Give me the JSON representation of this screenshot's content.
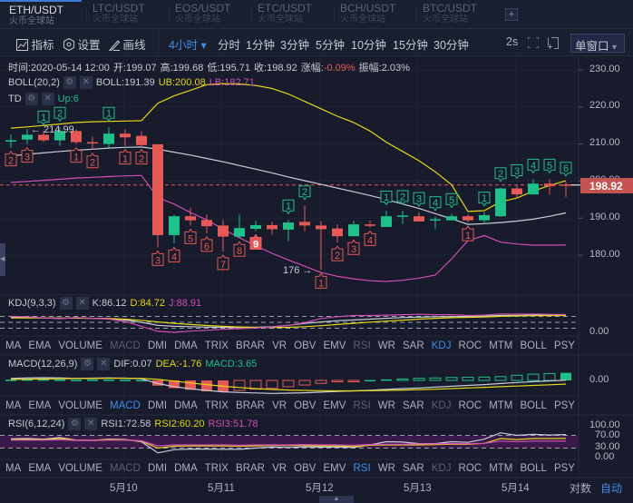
{
  "pair_tabs": [
    {
      "symbol": "ETH/USDT",
      "exchange": "火币全球站",
      "active": true
    },
    {
      "symbol": "LTC/USDT",
      "exchange": "火币全球站"
    },
    {
      "symbol": "EOS/USDT",
      "exchange": "火币全球站"
    },
    {
      "symbol": "ETC/USDT",
      "exchange": "火币全球站"
    },
    {
      "symbol": "BCH/USDT",
      "exchange": "火币全球站"
    },
    {
      "symbol": "BTC/USDT",
      "exchange": "火币全球站"
    }
  ],
  "add_tab": "+",
  "toolbar": {
    "indicator": "指标",
    "settings": "设置",
    "draw": "画线",
    "interval": "4小时",
    "interval_arrow": "▾",
    "periods": [
      "分时",
      "1分钟",
      "3分钟",
      "5分钟",
      "10分钟",
      "15分钟",
      "30分钟"
    ],
    "refresh": "2s",
    "window": "单窗口",
    "window_arrow": "▾"
  },
  "info": {
    "time": "时间:2020-05-14 12:00",
    "open": "开:199.07",
    "high": "高:199.68",
    "low": "低:195.71",
    "close": "收:198.92",
    "change_label": "涨幅:",
    "change": "-0.09%",
    "amplitude": "振幅:2.03%"
  },
  "boll": {
    "name": "BOLL(20,2)",
    "mid": "BOLL:191.39",
    "ub": "UB:200.08",
    "lb": "LB:182.71"
  },
  "td": {
    "name": "TD",
    "up": "Up:6"
  },
  "price_axis": [
    "230.00",
    "220.00",
    "210.00",
    "200.00",
    "190.00",
    "180.00"
  ],
  "last_price": "198.92",
  "annotations": {
    "high": "← 214.99",
    "low": "176 →"
  },
  "kdj": {
    "name": "KDJ(9,3,3)",
    "k": "K:86.12",
    "d": "D:84.72",
    "j": "J:88.91",
    "axis": "0.00"
  },
  "macd": {
    "name": "MACD(12,26,9)",
    "dif": "DIF:0.07",
    "dea": "DEA:-1.76",
    "macd": "MACD:3.65",
    "axis": "0.00"
  },
  "rsi": {
    "name": "RSI(6,12,24)",
    "rsi1": "RSI1:72.58",
    "rsi2": "RSI2:60.20",
    "rsi3": "RSI3:51.78",
    "axis": [
      "100.00",
      "70.00",
      "30.00",
      "0.00"
    ]
  },
  "indicator_tabs": [
    "MA",
    "EMA",
    "VOLUME",
    "MACD",
    "DMI",
    "DMA",
    "TRIX",
    "BRAR",
    "VR",
    "OBV",
    "EMV",
    "RSI",
    "WR",
    "SAR",
    "KDJ",
    "ROC",
    "MTM",
    "BOLL",
    "PSY"
  ],
  "panel_tab_state": [
    {
      "active": "KDJ",
      "disabled": [
        "MACD",
        "RSI"
      ]
    },
    {
      "active": "MACD",
      "disabled": [
        "RSI",
        "KDJ"
      ]
    },
    {
      "active": "RSI",
      "disabled": [
        "MACD",
        "KDJ"
      ]
    }
  ],
  "dates": [
    "5月10",
    "5月11",
    "5月12",
    "5月13",
    "5月14"
  ],
  "scale_modes": {
    "log": "对数",
    "auto": "自动"
  },
  "colors": {
    "up": "#1fc08a",
    "down": "#e55a56",
    "ub": "#e6d619",
    "mid": "#c8ccd8",
    "lb": "#d24db5",
    "accent": "#3e8ee8"
  },
  "chart_data": {
    "type": "candlestick",
    "ylim": [
      170,
      232
    ],
    "candles": [
      [
        211,
        211,
        212.5,
        209
      ],
      [
        211.2,
        212.5,
        214,
        210
      ],
      [
        212.5,
        211,
        213.5,
        210.5
      ],
      [
        211,
        213.5,
        214.5,
        209.5
      ],
      [
        213.5,
        210.5,
        214,
        210
      ],
      [
        210.5,
        210.2,
        212,
        208.5
      ],
      [
        210,
        212.8,
        214.5,
        209
      ],
      [
        212.8,
        211.8,
        214,
        209.5
      ],
      [
        212.2,
        209.7,
        213.5,
        209.5
      ],
      [
        209.9,
        185.4,
        210,
        182.1
      ],
      [
        185.4,
        190.5,
        190.9,
        183.1
      ],
      [
        190.5,
        189.4,
        192.8,
        188
      ],
      [
        189.5,
        187.8,
        190.9,
        185.9
      ],
      [
        188,
        185,
        189.5,
        181
      ],
      [
        185,
        187.3,
        190.9,
        184.6
      ],
      [
        187.1,
        188.1,
        189.3,
        186.5
      ],
      [
        188.1,
        187,
        189,
        185.5
      ],
      [
        186.9,
        188.8,
        189.5,
        183.8
      ],
      [
        189,
        188,
        193.3,
        186.4
      ],
      [
        188,
        187,
        189.2,
        176
      ],
      [
        187.2,
        185.1,
        188.3,
        183.4
      ],
      [
        185.1,
        188.3,
        189.3,
        185.1
      ],
      [
        188.3,
        187.9,
        189.3,
        187.5
      ],
      [
        187.6,
        190.5,
        191.9,
        187.6
      ],
      [
        190.5,
        190.7,
        192,
        188.4
      ],
      [
        190.5,
        189.1,
        191.5,
        189.1
      ],
      [
        189.5,
        189.7,
        190.4,
        187
      ],
      [
        189.4,
        190.5,
        191.2,
        189.4
      ],
      [
        190.5,
        189.4,
        191,
        188.8
      ],
      [
        189.4,
        190.8,
        191.6,
        188.3
      ],
      [
        190.5,
        198,
        198.2,
        190.3
      ],
      [
        198,
        196.4,
        199,
        195.3
      ],
      [
        196.4,
        199.3,
        200.5,
        196.4
      ],
      [
        199.3,
        198.6,
        200.5,
        196.4
      ],
      [
        199.07,
        198.92,
        199.68,
        195.71
      ]
    ],
    "boll_ub": [
      214.3,
      214.6,
      215,
      215.4,
      215.8,
      216,
      216.1,
      216.2,
      216.3,
      221,
      223,
      224.5,
      226,
      226.3,
      226.2,
      225.8,
      225,
      223.5,
      221.5,
      219.5,
      217.5,
      215.8,
      213.5,
      210.5,
      208,
      205.5,
      202.5,
      199,
      191.8,
      192,
      194.4,
      195.4,
      197.3,
      198.8,
      200.08
    ],
    "boll_mid": [
      206.8,
      207.2,
      207.6,
      208,
      208.3,
      208.6,
      208.9,
      209.1,
      209.2,
      208.6,
      207.8,
      207,
      206.1,
      205.2,
      204.2,
      203.2,
      202.2,
      201.1,
      200.1,
      199.1,
      198.1,
      197.1,
      196.1,
      195,
      193.8,
      192.6,
      191.2,
      189.8,
      188.3,
      188.5,
      188.8,
      189.2,
      189.7,
      190.5,
      191.39
    ],
    "boll_lb": [
      199.6,
      199.9,
      200.2,
      200.5,
      200.8,
      201,
      201.2,
      201.4,
      201.5,
      195.5,
      193.8,
      191.5,
      189.5,
      187,
      184.7,
      182.5,
      180.5,
      178.7,
      177,
      175.3,
      174.3,
      173.6,
      173.1,
      172.9,
      173.2,
      173.8,
      174.6,
      179,
      183.9,
      185.3,
      183.5,
      183,
      182.7,
      182.7,
      182.71
    ],
    "td_up": [
      [
        2,
        "1"
      ],
      [
        3,
        "2"
      ],
      [
        6,
        "1"
      ],
      [
        17,
        "1"
      ],
      [
        18,
        "2"
      ],
      [
        23,
        "1"
      ],
      [
        24,
        "2"
      ],
      [
        25,
        "3"
      ],
      [
        26,
        "4"
      ],
      [
        27,
        "5"
      ],
      [
        29,
        "1"
      ],
      [
        30,
        "2"
      ],
      [
        31,
        "3"
      ],
      [
        32,
        "4"
      ],
      [
        33,
        "5"
      ],
      [
        34,
        "6"
      ]
    ],
    "td_down": [
      [
        0,
        "2"
      ],
      [
        1,
        "3"
      ],
      [
        4,
        "1"
      ],
      [
        5,
        "2"
      ],
      [
        7,
        "1"
      ],
      [
        8,
        "2"
      ],
      [
        9,
        "3"
      ],
      [
        10,
        "4"
      ],
      [
        11,
        "5"
      ],
      [
        12,
        "6"
      ],
      [
        13,
        "7"
      ],
      [
        14,
        "8"
      ],
      [
        15,
        "9"
      ],
      [
        19,
        "1"
      ],
      [
        20,
        "2"
      ],
      [
        21,
        "3"
      ],
      [
        22,
        "4"
      ],
      [
        28,
        "1"
      ]
    ],
    "kdj_k": [
      75,
      74,
      72,
      70,
      72,
      70,
      68,
      62,
      50,
      35,
      30,
      28,
      26,
      25,
      24,
      25,
      28,
      35,
      45,
      52,
      58,
      62,
      66,
      70,
      74,
      76,
      78,
      78,
      80,
      82,
      84,
      85,
      86,
      86,
      86.12
    ],
    "kdj_d": [
      72,
      72,
      72,
      71,
      71,
      70,
      69,
      66,
      60,
      52,
      45,
      39,
      34,
      30,
      27,
      25,
      24,
      25,
      28,
      33,
      39,
      45,
      51,
      56,
      61,
      66,
      70,
      73,
      75,
      77,
      80,
      82,
      83,
      84,
      84.72
    ],
    "kdj_j": [
      80,
      78,
      72,
      68,
      74,
      70,
      66,
      54,
      30,
      5,
      0,
      6,
      10,
      15,
      18,
      22,
      27,
      34,
      49,
      69,
      78,
      84,
      84,
      86,
      88,
      90,
      88,
      88,
      84,
      86,
      92,
      91,
      92,
      90,
      88.91
    ],
    "macd_dif": [
      1,
      1.2,
      1.3,
      1.2,
      1,
      1.1,
      1.2,
      1.1,
      0.8,
      -1.5,
      -3,
      -4,
      -4.8,
      -5.5,
      -5.8,
      -6,
      -6.2,
      -6.1,
      -5.9,
      -5.6,
      -5.3,
      -5,
      -4.7,
      -4.3,
      -3.9,
      -3.6,
      -3.2,
      -2.8,
      -2.4,
      -2,
      -1.5,
      -1,
      -0.6,
      -0.2,
      0.07
    ],
    "macd_dea": [
      0.5,
      0.6,
      0.7,
      0.8,
      0.9,
      0.9,
      1,
      1,
      1,
      0.5,
      -0.3,
      -1.2,
      -2,
      -2.8,
      -3.4,
      -3.9,
      -4.3,
      -4.6,
      -4.8,
      -4.9,
      -5,
      -5,
      -4.9,
      -4.8,
      -4.6,
      -4.4,
      -4.2,
      -3.9,
      -3.6,
      -3.3,
      -3,
      -2.7,
      -2.4,
      -2.1,
      -1.76
    ],
    "macd_hist": [
      0.4,
      0.5,
      0.5,
      0.4,
      0.3,
      0.4,
      0.4,
      0.3,
      0.2,
      -2.5,
      -3.7,
      -4.5,
      -5.2,
      -5.5,
      -4.8,
      -4.2,
      -3.8,
      -3,
      -2.2,
      -1.4,
      -0.6,
      -0.3,
      0.2,
      0.5,
      0.7,
      1,
      1.2,
      1.4,
      1.5,
      1.6,
      1.8,
      2.5,
      3,
      3.3,
      3.65
    ],
    "rsi1": [
      59,
      60,
      58,
      63,
      55,
      54,
      58,
      57,
      50,
      15,
      25,
      27,
      27,
      26,
      26,
      30,
      33,
      32,
      34,
      33,
      33,
      32,
      40,
      50,
      49,
      44,
      44,
      50,
      48,
      58,
      78,
      70,
      73,
      71,
      72.58
    ],
    "rsi2": [
      57,
      57,
      56,
      60,
      55,
      55,
      57,
      56,
      52,
      30,
      36,
      37,
      37,
      37,
      36,
      37,
      38,
      38,
      38,
      37,
      37,
      35,
      39,
      40,
      40,
      40,
      41,
      42,
      42,
      45,
      60,
      57,
      60,
      60,
      60.2
    ],
    "rsi3": [
      55,
      55,
      55,
      56,
      54,
      54,
      55,
      55,
      53,
      37,
      40,
      40,
      40,
      40,
      39,
      40,
      40,
      40,
      41,
      40,
      40,
      39,
      41,
      42,
      42,
      43,
      43,
      44,
      44,
      45,
      52,
      50,
      52,
      52,
      51.78
    ]
  }
}
